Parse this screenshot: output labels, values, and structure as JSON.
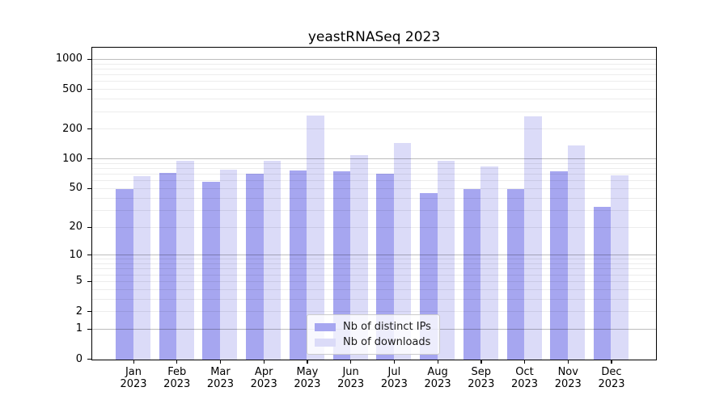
{
  "chart_data": {
    "type": "bar",
    "title": "yeastRNASeq 2023",
    "categories": [
      "Jan",
      "Feb",
      "Mar",
      "Apr",
      "May",
      "Jun",
      "Jul",
      "Aug",
      "Sep",
      "Oct",
      "Nov",
      "Dec"
    ],
    "category_year": "2023",
    "series": [
      {
        "name": "Nb of distinct IPs",
        "color": "#a6a6f0",
        "values": [
          50,
          73,
          59,
          71,
          77,
          75,
          72,
          45,
          50,
          50,
          76,
          33
        ]
      },
      {
        "name": "Nb of downloads",
        "color": "#dbdbf8",
        "values": [
          67,
          96,
          78,
          97,
          278,
          111,
          147,
          97,
          84,
          270,
          137,
          69
        ]
      }
    ],
    "yscale": "log1p",
    "yticks": [
      0,
      1,
      2,
      5,
      10,
      20,
      50,
      100,
      200,
      500,
      1000
    ],
    "ylim": [
      0,
      1300
    ],
    "grid": "horizontal",
    "legend_position": "lower center"
  },
  "colors": {
    "background": "#ffffff",
    "spine": "#000000",
    "major_grid": "#bdbdbd",
    "minor_grid": "#ebebeb"
  }
}
